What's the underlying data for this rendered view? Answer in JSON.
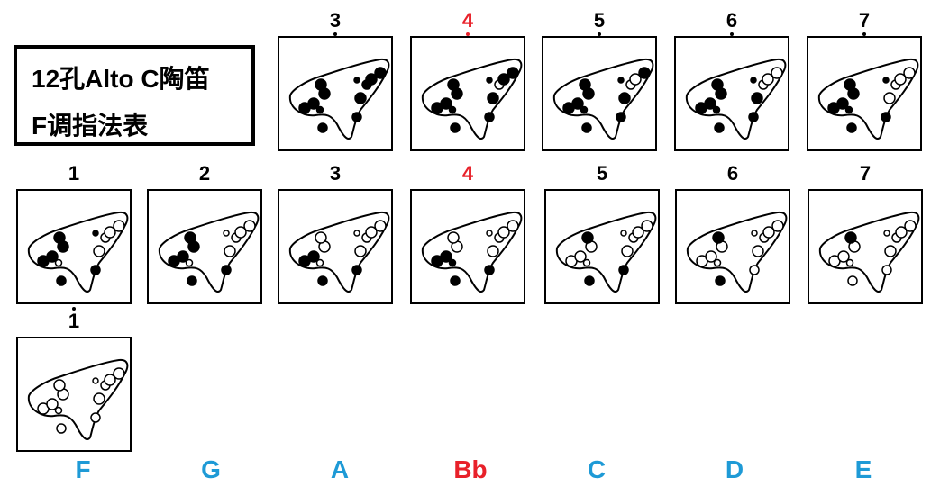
{
  "title": {
    "line1": "12孔Alto C陶笛",
    "line2": "F调指法表"
  },
  "colors": {
    "key_blue": "#1e9ad6",
    "accent_red": "#e8212a",
    "ink": "#000000"
  },
  "rows": {
    "top": [
      {
        "note": "3",
        "dot": "below",
        "highlight": false,
        "fill": [
          1,
          1,
          1,
          1,
          1,
          1,
          1,
          1,
          1,
          1,
          1,
          1
        ]
      },
      {
        "note": "4",
        "dot": "below",
        "highlight": true,
        "fill": [
          1,
          1,
          1,
          1,
          1,
          1,
          0,
          1,
          1,
          1,
          1,
          1
        ]
      },
      {
        "note": "5",
        "dot": "below",
        "highlight": false,
        "fill": [
          1,
          1,
          1,
          1,
          1,
          1,
          0,
          0,
          1,
          1,
          1,
          1
        ]
      },
      {
        "note": "6",
        "dot": "below",
        "highlight": false,
        "fill": [
          1,
          1,
          1,
          1,
          1,
          1,
          0,
          0,
          0,
          1,
          1,
          1
        ]
      },
      {
        "note": "7",
        "dot": "below",
        "highlight": false,
        "fill": [
          1,
          1,
          1,
          1,
          1,
          1,
          0,
          0,
          0,
          0,
          1,
          1
        ]
      }
    ],
    "middle": [
      {
        "note": "1",
        "dot": "none",
        "highlight": false,
        "fill": [
          1,
          1,
          1,
          1,
          0,
          1,
          0,
          0,
          0,
          0,
          1,
          1
        ]
      },
      {
        "note": "2",
        "dot": "none",
        "highlight": false,
        "fill": [
          1,
          1,
          1,
          1,
          0,
          0,
          0,
          0,
          0,
          0,
          1,
          1
        ]
      },
      {
        "note": "3",
        "dot": "none",
        "highlight": false,
        "fill": [
          1,
          1,
          0,
          0,
          0,
          0,
          0,
          0,
          0,
          0,
          1,
          1
        ]
      },
      {
        "note": "4",
        "dot": "none",
        "highlight": true,
        "fill": [
          1,
          1,
          0,
          0,
          1,
          0,
          0,
          0,
          0,
          0,
          1,
          1
        ]
      },
      {
        "note": "5",
        "dot": "none",
        "highlight": false,
        "fill": [
          0,
          0,
          0,
          1,
          0,
          0,
          0,
          0,
          0,
          0,
          1,
          1
        ]
      },
      {
        "note": "6",
        "dot": "none",
        "highlight": false,
        "fill": [
          0,
          0,
          0,
          1,
          0,
          0,
          0,
          0,
          0,
          0,
          1,
          0
        ]
      },
      {
        "note": "7",
        "dot": "none",
        "highlight": false,
        "fill": [
          0,
          0,
          0,
          1,
          0,
          0,
          0,
          0,
          0,
          0,
          0,
          0
        ]
      }
    ],
    "bottom": [
      {
        "note": "1",
        "dot": "above",
        "highlight": false,
        "fill": [
          0,
          0,
          0,
          0,
          0,
          0,
          0,
          0,
          0,
          0,
          0,
          0
        ]
      }
    ]
  },
  "keys": [
    "F",
    "G",
    "A",
    "Bb",
    "C",
    "D",
    "E"
  ],
  "key_red": [
    false,
    false,
    false,
    true,
    false,
    false,
    false
  ]
}
